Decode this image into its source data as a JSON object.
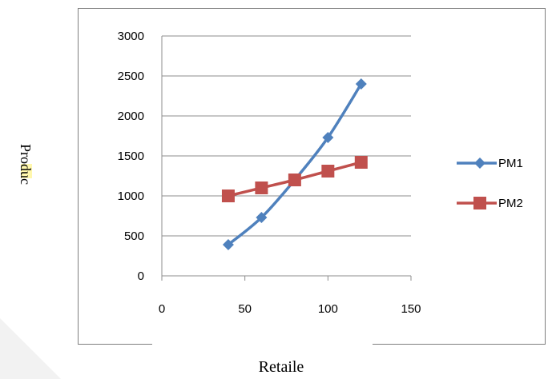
{
  "chart_data": {
    "type": "scatter",
    "xlabel": "Retaile",
    "ylabel": "Produc",
    "xlim": [
      0,
      150
    ],
    "ylim": [
      0,
      3000
    ],
    "x_ticks": [
      "0",
      "50",
      "100",
      "150"
    ],
    "y_ticks": [
      "0",
      "500",
      "1000",
      "1500",
      "2000",
      "2500",
      "3000"
    ],
    "grid": "horizontal",
    "legend_position": "right",
    "series": [
      {
        "name": "PM1",
        "color": "#4f81bd",
        "marker": "diamond",
        "points": [
          {
            "x": 40,
            "y": 390
          },
          {
            "x": 60,
            "y": 730
          },
          {
            "x": 80,
            "y": 1200
          },
          {
            "x": 100,
            "y": 1730
          },
          {
            "x": 120,
            "y": 2400
          }
        ]
      },
      {
        "name": "PM2",
        "color": "#c0504d",
        "marker": "square",
        "points": [
          {
            "x": 40,
            "y": 1000
          },
          {
            "x": 60,
            "y": 1100
          },
          {
            "x": 80,
            "y": 1200
          },
          {
            "x": 100,
            "y": 1310
          },
          {
            "x": 120,
            "y": 1420
          }
        ]
      }
    ]
  },
  "colors": {
    "frame": "#7f7f7f",
    "grid": "#8c8c8c",
    "highlight": "#fff176",
    "corner": "#f2f2f2"
  }
}
